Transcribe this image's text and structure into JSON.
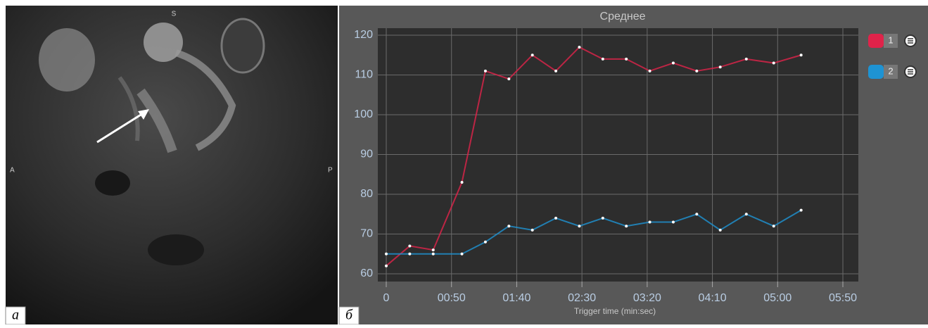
{
  "panel_labels": [
    "а",
    "б"
  ],
  "image_markers": [
    "S",
    "A",
    "P"
  ],
  "chart_data": {
    "type": "line",
    "title": "Среднее",
    "x_label": "Trigger time (min:sec)",
    "x": [
      0,
      18,
      36,
      58,
      76,
      94,
      112,
      130,
      148,
      166,
      184,
      202,
      220,
      238,
      256,
      276,
      297,
      318
    ],
    "series": [
      {
        "name": "1",
        "color": "#e0234a",
        "values": [
          62,
          67,
          66,
          83,
          111,
          109,
          115,
          111,
          117,
          114,
          114,
          111,
          113,
          111,
          112,
          114,
          113,
          115
        ]
      },
      {
        "name": "2",
        "color": "#1e93d3",
        "values": [
          65,
          65,
          65,
          65,
          68,
          72,
          71,
          74,
          72,
          74,
          72,
          73,
          73,
          75,
          71,
          75,
          72,
          76
        ]
      }
    ],
    "xlim": [
      0,
      350
    ],
    "xticks": [
      0,
      {
        "value": 50,
        "label": "00:50"
      },
      {
        "value": 100,
        "label": "01:40"
      },
      {
        "value": 150,
        "label": "02:30"
      },
      {
        "value": 200,
        "label": "03:20"
      },
      {
        "value": 250,
        "label": "04:10"
      },
      {
        "value": 300,
        "label": "05:00"
      },
      {
        "value": 350,
        "label": "05:50"
      }
    ],
    "ylim": [
      60,
      120
    ],
    "yticks": [
      60,
      70,
      80,
      90,
      100,
      110,
      120
    ],
    "grid": true,
    "legend": "right"
  }
}
